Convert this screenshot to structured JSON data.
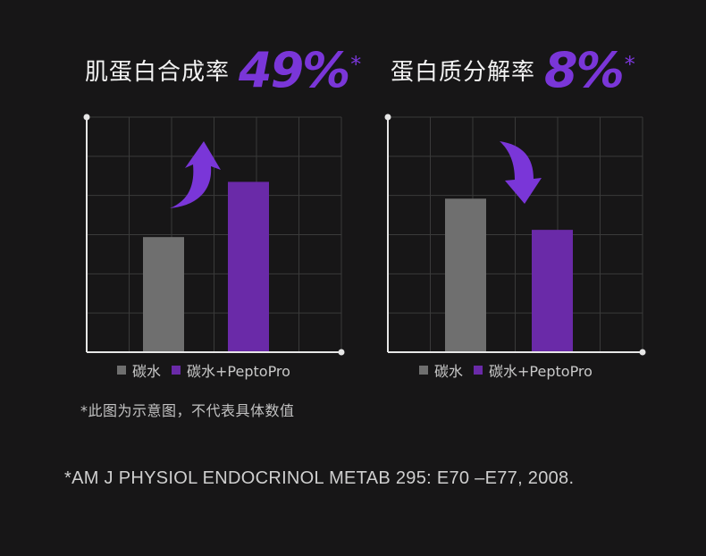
{
  "colors": {
    "background": "#171617",
    "carb": "#6f6f6f",
    "pepto": "#6a2aa8",
    "accent": "#7a36d8",
    "grid": "#3a3a3a",
    "axis": "#e6e6e6"
  },
  "panels": [
    {
      "title": "肌蛋白合成率",
      "big_value": "49%",
      "star": "*",
      "arrow_direction": "up"
    },
    {
      "title": "蛋白质分解率",
      "big_value": "8%",
      "star": "*",
      "arrow_direction": "down"
    }
  ],
  "legend": {
    "carb": "碳水",
    "pepto": "碳水+PeptoPro"
  },
  "note": "*此图为示意图，不代表具体数值",
  "citation": "*AM J PHYSIOL ENDOCRINOL METAB 295: E70 –E77, 2008.",
  "chart_data": [
    {
      "type": "bar",
      "title": "肌蛋白合成率",
      "categories": [
        "碳水",
        "碳水+PeptoPro"
      ],
      "values": [
        4.8,
        7.1
      ],
      "ylim": [
        0,
        9.8
      ],
      "grid": true,
      "legend_position": "bottom"
    },
    {
      "type": "bar",
      "title": "蛋白质分解率",
      "categories": [
        "碳水",
        "碳水+PeptoPro"
      ],
      "values": [
        6.4,
        5.1
      ],
      "ylim": [
        0,
        9.8
      ],
      "grid": true,
      "legend_position": "bottom"
    }
  ]
}
